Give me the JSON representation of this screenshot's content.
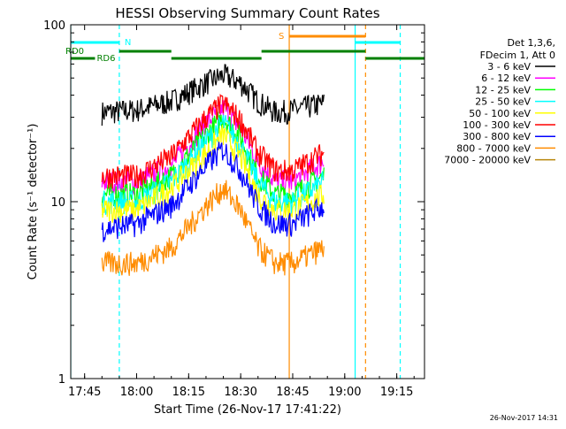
{
  "chart_data": {
    "type": "line",
    "title": "HESSI Observing Summary Count Rates",
    "xlabel": "Start Time (26-Nov-17 17:41:22)",
    "ylabel": "Count Rate (s⁻¹ detector⁻¹)",
    "y_scale": "log",
    "ylim": [
      1,
      100
    ],
    "xlim": [
      "17:41",
      "19:23"
    ],
    "x_ticks": [
      "17:45",
      "18:00",
      "18:15",
      "18:30",
      "18:45",
      "19:00",
      "19:15"
    ],
    "y_ticks": [
      "1",
      "10",
      "100"
    ],
    "grid": false,
    "legend_placement": "right",
    "legend_header": [
      "Det 1,3,6,",
      "FDecim 1, Att 0"
    ],
    "timestamp": "26-Nov-2017 14:31",
    "data_window": [
      "17:50",
      "18:54"
    ],
    "flag_labels": {
      "night": "N",
      "saa": "S",
      "rd0": "RD0",
      "rd6": "RD6"
    },
    "series": [
      {
        "name": "3 - 6 keV",
        "color": "#000000",
        "x": [
          "17:50",
          "18:00",
          "18:10",
          "18:20",
          "18:25",
          "18:30",
          "18:35",
          "18:40",
          "18:45",
          "18:54"
        ],
        "values": [
          32,
          33,
          37,
          47,
          52,
          47,
          37,
          32,
          33,
          36
        ]
      },
      {
        "name": "6 - 12 keV",
        "color": "#ff00ff",
        "x": [
          "17:50",
          "18:00",
          "18:10",
          "18:20",
          "18:25",
          "18:30",
          "18:35",
          "18:40",
          "18:45",
          "18:54"
        ],
        "values": [
          13,
          13,
          16,
          28,
          34,
          26,
          17,
          13,
          13,
          17
        ]
      },
      {
        "name": "12 - 25 keV",
        "color": "#00ff00",
        "x": [
          "17:50",
          "18:00",
          "18:10",
          "18:20",
          "18:25",
          "18:30",
          "18:35",
          "18:40",
          "18:45",
          "18:54"
        ],
        "values": [
          11,
          11,
          14,
          24,
          30,
          23,
          14,
          11,
          11,
          14
        ]
      },
      {
        "name": "25 - 50 keV",
        "color": "#00ffff",
        "x": [
          "17:50",
          "18:00",
          "18:10",
          "18:20",
          "18:25",
          "18:30",
          "18:35",
          "18:40",
          "18:45",
          "18:54"
        ],
        "values": [
          10,
          10,
          13,
          22,
          28,
          21,
          13,
          10,
          10,
          13
        ]
      },
      {
        "name": "50 - 100 keV",
        "color": "#ffff00",
        "x": [
          "17:50",
          "18:00",
          "18:10",
          "18:20",
          "18:25",
          "18:30",
          "18:35",
          "18:40",
          "18:45",
          "18:54"
        ],
        "values": [
          9,
          9,
          12,
          19,
          24,
          18,
          11,
          9,
          9,
          11
        ]
      },
      {
        "name": "100 - 300 keV",
        "color": "#ff0000",
        "x": [
          "17:50",
          "18:00",
          "18:10",
          "18:20",
          "18:25",
          "18:30",
          "18:35",
          "18:40",
          "18:45",
          "18:54"
        ],
        "values": [
          14,
          14,
          18,
          30,
          36,
          29,
          19,
          15,
          15,
          19
        ]
      },
      {
        "name": "300 - 800 keV",
        "color": "#0000ff",
        "x": [
          "17:50",
          "18:00",
          "18:10",
          "18:20",
          "18:25",
          "18:30",
          "18:35",
          "18:40",
          "18:45",
          "18:54"
        ],
        "values": [
          7,
          7.5,
          9.5,
          16,
          20,
          15,
          9.5,
          7.5,
          7.5,
          9.5
        ]
      },
      {
        "name": "800 - 7000 keV",
        "color": "#ff8c00",
        "x": [
          "17:50",
          "18:00",
          "18:10",
          "18:20",
          "18:25",
          "18:30",
          "18:35",
          "18:40",
          "18:45",
          "18:54"
        ],
        "values": [
          4.5,
          4.5,
          5.5,
          9.5,
          12,
          9,
          5.5,
          4.5,
          4.5,
          5.5
        ]
      },
      {
        "name": "7000 - 20000 keV",
        "color": "#b8860b",
        "x": [],
        "values": []
      }
    ],
    "vertical_lines": [
      {
        "time": "17:41",
        "color": "#00ffff",
        "style": "solid"
      },
      {
        "time": "17:55",
        "color": "#00ffff",
        "style": "dashed"
      },
      {
        "time": "18:44",
        "color": "#ff8c00",
        "style": "solid"
      },
      {
        "time": "19:03",
        "color": "#00ffff",
        "style": "solid"
      },
      {
        "time": "19:06",
        "color": "#ff8c00",
        "style": "dashed"
      },
      {
        "time": "19:16",
        "color": "#00ffff",
        "style": "dashed"
      }
    ],
    "flag_bars": [
      {
        "row": "night",
        "color": "#00ffff",
        "start": "17:41",
        "end": "17:55"
      },
      {
        "row": "night",
        "color": "#00ffff",
        "start": "19:03",
        "end": "19:16"
      },
      {
        "row": "saa",
        "color": "#ff8c00",
        "start": "18:44",
        "end": "19:06"
      },
      {
        "row": "rd0",
        "color": "#008000",
        "start": "17:55",
        "end": "18:10"
      },
      {
        "row": "rd0",
        "color": "#008000",
        "start": "18:36",
        "end": "19:06"
      },
      {
        "row": "rd6",
        "color": "#008000",
        "start": "17:41",
        "end": "17:48"
      },
      {
        "row": "rd6",
        "color": "#008000",
        "start": "18:10",
        "end": "18:36"
      },
      {
        "row": "rd6",
        "color": "#008000",
        "start": "19:06",
        "end": "19:23"
      }
    ]
  }
}
